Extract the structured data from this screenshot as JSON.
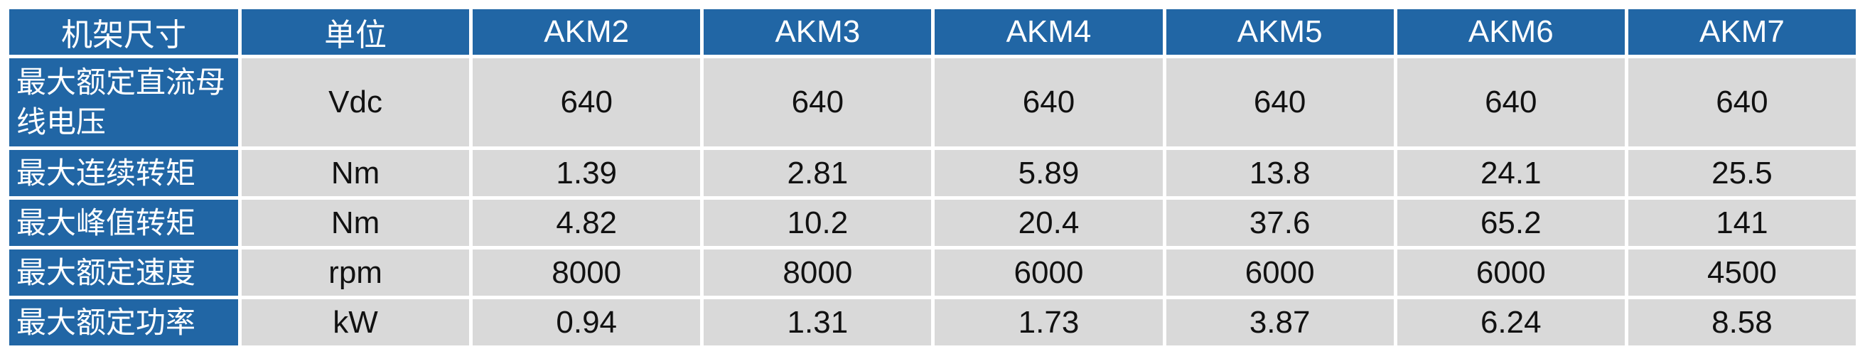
{
  "table": {
    "header": [
      "机架尺寸",
      "单位",
      "AKM2",
      "AKM3",
      "AKM4",
      "AKM5",
      "AKM6",
      "AKM7"
    ],
    "rows": [
      {
        "label": "最大额定直流母线电压",
        "unit": "Vdc",
        "values": [
          640,
          640,
          640,
          640,
          640,
          640
        ]
      },
      {
        "label": "最大连续转矩",
        "unit": "Nm",
        "values": [
          1.39,
          2.81,
          5.89,
          13.8,
          24.1,
          25.5
        ]
      },
      {
        "label": "最大峰值转矩",
        "unit": "Nm",
        "values": [
          4.82,
          10.2,
          20.4,
          37.6,
          65.2,
          141
        ]
      },
      {
        "label": "最大额定速度",
        "unit": "rpm",
        "values": [
          8000,
          8000,
          6000,
          6000,
          6000,
          4500
        ]
      },
      {
        "label": "最大额定功率",
        "unit": "kW",
        "values": [
          0.94,
          1.31,
          1.73,
          3.87,
          6.24,
          8.58
        ]
      }
    ]
  }
}
